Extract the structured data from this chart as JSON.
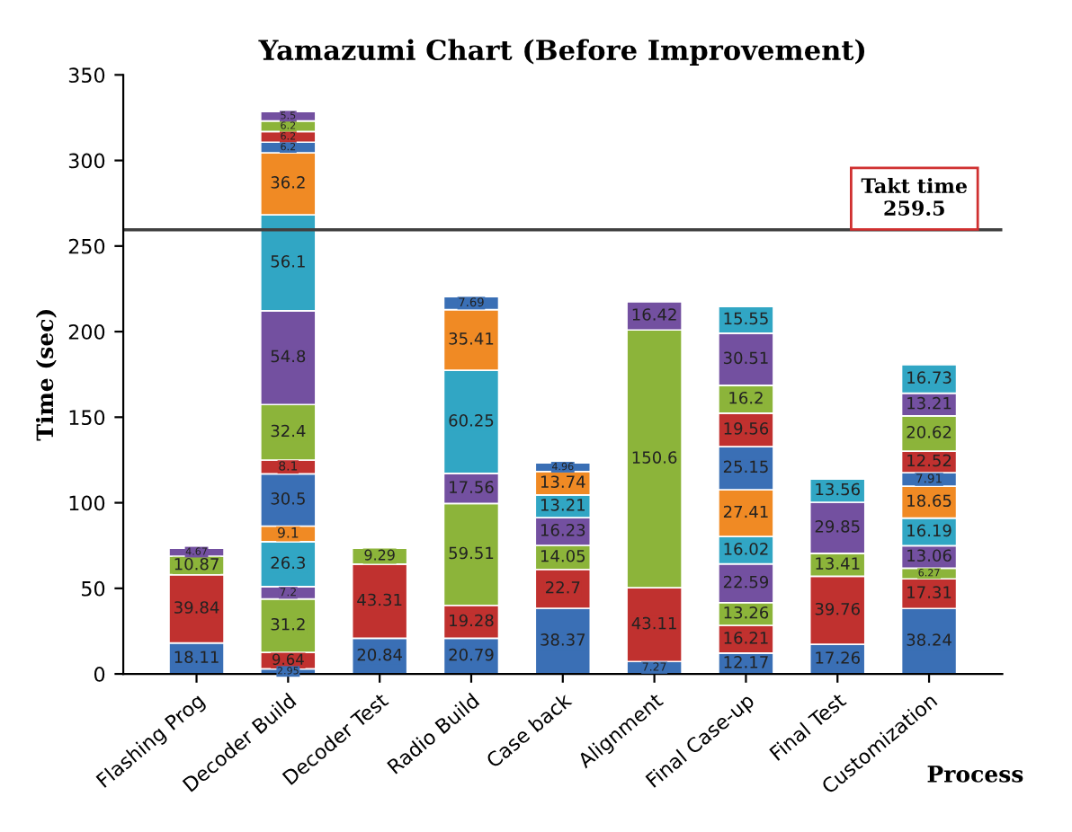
{
  "chart_data": {
    "type": "bar",
    "stacked": true,
    "title": "Yamazumi Chart (Before Improvement)",
    "xlabel": "Process",
    "ylabel": "Time (sec)",
    "categories": [
      "Flashing Prog",
      "Decoder Build",
      "Decoder Test",
      "Radio Build",
      "Case back",
      "Alignment",
      "Final Case-up",
      "Final Test",
      "Customization"
    ],
    "series": [
      {
        "color": "#3a6fb5",
        "values": [
          18.11,
          2.95,
          20.84,
          20.79,
          38.37,
          7.27,
          12.17,
          17.26,
          38.24
        ]
      },
      {
        "color": "#c0312f",
        "values": [
          39.84,
          9.64,
          43.31,
          19.28,
          22.7,
          43.11,
          16.21,
          39.76,
          17.31
        ]
      },
      {
        "color": "#8cb43a",
        "values": [
          10.87,
          31.2,
          9.29,
          59.51,
          14.05,
          150.6,
          13.26,
          13.41,
          6.27
        ]
      },
      {
        "color": "#7350a0",
        "values": [
          4.67,
          7.2,
          null,
          17.56,
          16.23,
          16.42,
          22.59,
          29.85,
          13.06
        ]
      },
      {
        "color": "#31a6c4",
        "values": [
          null,
          26.3,
          null,
          60.25,
          13.21,
          null,
          16.02,
          13.56,
          16.19
        ]
      },
      {
        "color": "#f08a24",
        "values": [
          null,
          9.1,
          null,
          35.41,
          13.74,
          null,
          27.41,
          null,
          18.65
        ]
      },
      {
        "color": "#3a6fb5",
        "values": [
          null,
          30.5,
          null,
          7.69,
          4.96,
          null,
          25.15,
          null,
          7.91
        ]
      },
      {
        "color": "#c0312f",
        "values": [
          null,
          8.1,
          null,
          null,
          null,
          null,
          19.56,
          null,
          12.52
        ]
      },
      {
        "color": "#8cb43a",
        "values": [
          null,
          32.4,
          null,
          null,
          null,
          null,
          16.2,
          null,
          20.62
        ]
      },
      {
        "color": "#7350a0",
        "values": [
          null,
          54.8,
          null,
          null,
          null,
          null,
          30.51,
          null,
          13.21
        ]
      },
      {
        "color": "#31a6c4",
        "values": [
          null,
          56.1,
          null,
          null,
          null,
          null,
          15.55,
          null,
          16.73
        ]
      },
      {
        "color": "#f08a24",
        "values": [
          null,
          36.2,
          null,
          null,
          null,
          null,
          null,
          null,
          null
        ]
      },
      {
        "color": "#3a6fb5",
        "values": [
          null,
          6.2,
          null,
          null,
          null,
          null,
          null,
          null,
          null
        ]
      },
      {
        "color": "#c0312f",
        "values": [
          null,
          6.2,
          null,
          null,
          null,
          null,
          null,
          null,
          null
        ]
      },
      {
        "color": "#8cb43a",
        "values": [
          null,
          6.2,
          null,
          null,
          null,
          null,
          null,
          null,
          null
        ]
      },
      {
        "color": "#7350a0",
        "values": [
          null,
          5.5,
          null,
          null,
          null,
          null,
          null,
          null,
          null
        ]
      }
    ],
    "ylim": [
      0,
      350
    ],
    "yticks": [
      0,
      50,
      100,
      150,
      200,
      250,
      300,
      350
    ],
    "ref_lines": [
      {
        "axis": "y",
        "value": 259.5,
        "label": "Takt time\n259.5",
        "color": "#404040"
      }
    ],
    "data_labels": true,
    "grid": false,
    "legend": false
  }
}
